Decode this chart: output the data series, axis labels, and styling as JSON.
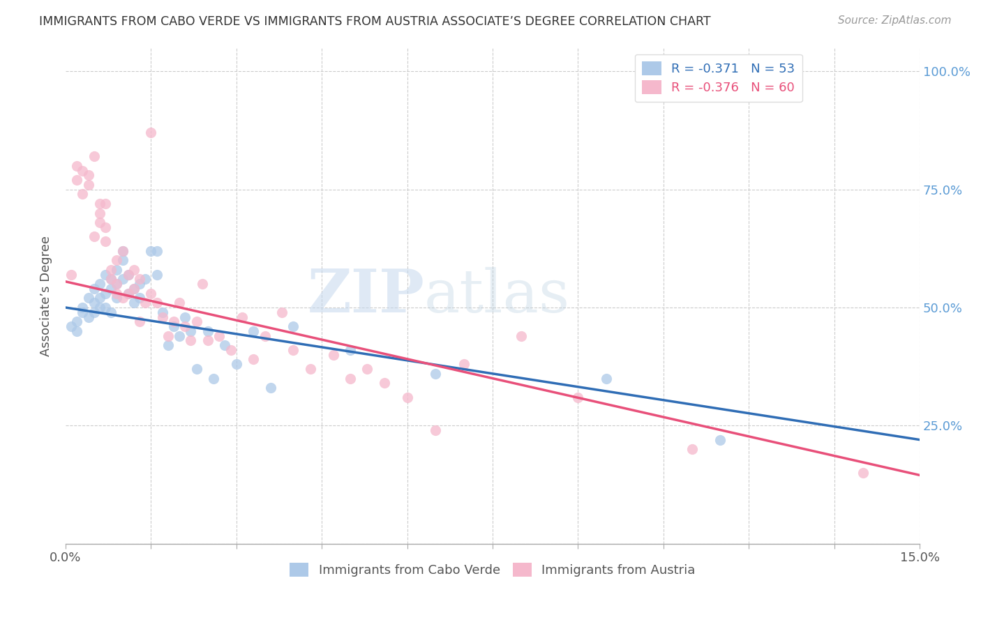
{
  "title": "IMMIGRANTS FROM CABO VERDE VS IMMIGRANTS FROM AUSTRIA ASSOCIATE’S DEGREE CORRELATION CHART",
  "source": "Source: ZipAtlas.com",
  "ylabel": "Associate’s Degree",
  "x_min": 0.0,
  "x_max": 0.15,
  "y_min": 0.0,
  "y_max": 1.05,
  "x_ticks": [
    0.0,
    0.015,
    0.03,
    0.045,
    0.06,
    0.075,
    0.09,
    0.105,
    0.12,
    0.135,
    0.15
  ],
  "x_tick_labels_show": [
    "0.0%",
    "",
    "",
    "",
    "",
    "",
    "",
    "",
    "",
    "",
    "15.0%"
  ],
  "y_ticks": [
    0.0,
    0.25,
    0.5,
    0.75,
    1.0
  ],
  "y_tick_labels": [
    "",
    "25.0%",
    "50.0%",
    "75.0%",
    "100.0%"
  ],
  "color_cabo_verde": "#adc9e8",
  "color_austria": "#f5b8cc",
  "color_line_cabo_verde": "#2f6db5",
  "color_line_austria": "#e8507a",
  "watermark_zip": "ZIP",
  "watermark_atlas": "atlas",
  "cabo_verde_x": [
    0.001,
    0.002,
    0.002,
    0.003,
    0.003,
    0.004,
    0.004,
    0.005,
    0.005,
    0.005,
    0.006,
    0.006,
    0.006,
    0.007,
    0.007,
    0.007,
    0.008,
    0.008,
    0.008,
    0.009,
    0.009,
    0.009,
    0.01,
    0.01,
    0.01,
    0.011,
    0.011,
    0.012,
    0.012,
    0.013,
    0.013,
    0.014,
    0.015,
    0.016,
    0.016,
    0.017,
    0.018,
    0.019,
    0.02,
    0.021,
    0.022,
    0.023,
    0.025,
    0.026,
    0.028,
    0.03,
    0.033,
    0.036,
    0.04,
    0.05,
    0.065,
    0.095,
    0.115
  ],
  "cabo_verde_y": [
    0.46,
    0.47,
    0.45,
    0.49,
    0.5,
    0.52,
    0.48,
    0.54,
    0.51,
    0.49,
    0.55,
    0.52,
    0.5,
    0.57,
    0.53,
    0.5,
    0.56,
    0.54,
    0.49,
    0.58,
    0.55,
    0.52,
    0.6,
    0.62,
    0.56,
    0.57,
    0.53,
    0.54,
    0.51,
    0.55,
    0.52,
    0.56,
    0.62,
    0.62,
    0.57,
    0.49,
    0.42,
    0.46,
    0.44,
    0.48,
    0.45,
    0.37,
    0.45,
    0.35,
    0.42,
    0.38,
    0.45,
    0.33,
    0.46,
    0.41,
    0.36,
    0.35,
    0.22
  ],
  "austria_x": [
    0.001,
    0.002,
    0.002,
    0.003,
    0.003,
    0.004,
    0.004,
    0.005,
    0.005,
    0.006,
    0.006,
    0.006,
    0.007,
    0.007,
    0.007,
    0.008,
    0.008,
    0.009,
    0.009,
    0.009,
    0.01,
    0.01,
    0.011,
    0.011,
    0.012,
    0.012,
    0.013,
    0.013,
    0.014,
    0.015,
    0.015,
    0.016,
    0.017,
    0.018,
    0.019,
    0.02,
    0.021,
    0.022,
    0.023,
    0.024,
    0.025,
    0.027,
    0.029,
    0.031,
    0.033,
    0.035,
    0.038,
    0.04,
    0.043,
    0.047,
    0.05,
    0.053,
    0.056,
    0.06,
    0.065,
    0.07,
    0.08,
    0.09,
    0.11,
    0.14
  ],
  "austria_y": [
    0.57,
    0.8,
    0.77,
    0.79,
    0.74,
    0.76,
    0.78,
    0.82,
    0.65,
    0.7,
    0.72,
    0.68,
    0.64,
    0.72,
    0.67,
    0.56,
    0.58,
    0.6,
    0.53,
    0.55,
    0.62,
    0.52,
    0.57,
    0.53,
    0.58,
    0.54,
    0.56,
    0.47,
    0.51,
    0.87,
    0.53,
    0.51,
    0.48,
    0.44,
    0.47,
    0.51,
    0.46,
    0.43,
    0.47,
    0.55,
    0.43,
    0.44,
    0.41,
    0.48,
    0.39,
    0.44,
    0.49,
    0.41,
    0.37,
    0.4,
    0.35,
    0.37,
    0.34,
    0.31,
    0.24,
    0.38,
    0.44,
    0.31,
    0.2,
    0.15
  ],
  "line_cv_x0": 0.0,
  "line_cv_y0": 0.5,
  "line_cv_x1": 0.15,
  "line_cv_y1": 0.22,
  "line_at_x0": 0.0,
  "line_at_y0": 0.555,
  "line_at_x1": 0.15,
  "line_at_y1": 0.145
}
